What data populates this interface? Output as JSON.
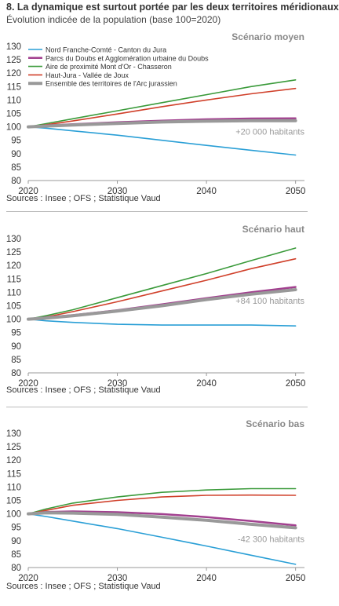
{
  "header": {
    "title": "8. La dynamique est surtout portée par les deux territoires méridionaux",
    "subtitle": "Évolution indicée de la population (base 100=2020)"
  },
  "source": "Sources : Insee ; OFS ; Statistique Vaud",
  "colors": {
    "nord": "#2a9fd6",
    "parcs": "#a2408f",
    "aire": "#3a9a3a",
    "haut": "#d0402a",
    "ensemble": "#999999"
  },
  "chart_data": [
    {
      "type": "line",
      "scenario": "Scénario moyen",
      "annotation": "+20 000 habitants",
      "ylim": [
        80,
        130
      ],
      "yticks": [
        80,
        85,
        90,
        95,
        100,
        105,
        110,
        115,
        120,
        125,
        130
      ],
      "xlim": [
        2020,
        2051
      ],
      "xticks": [
        2020,
        2030,
        2040,
        2050
      ],
      "x": [
        2020,
        2022,
        2025,
        2030,
        2035,
        2040,
        2045,
        2050
      ],
      "legend": true,
      "series": [
        {
          "key": "nord",
          "name": "Nord Franche-Comté - Canton du Jura",
          "values": [
            100,
            99.5,
            98.5,
            96.9,
            95.0,
            93.1,
            91.3,
            89.5
          ]
        },
        {
          "key": "parcs",
          "name": "Parcs du Doubs et Agglomération urbaine du Doubs",
          "values": [
            100,
            100.5,
            101.0,
            101.7,
            102.3,
            102.8,
            103.1,
            103.2
          ]
        },
        {
          "key": "aire",
          "name": "Aire de proximité Mont d'Or - Chasseron",
          "values": [
            100,
            101.2,
            103.0,
            106.0,
            109.0,
            112.0,
            115.0,
            117.5
          ]
        },
        {
          "key": "haut",
          "name": "Haut-Jura - Vallée de Joux",
          "values": [
            100,
            100.8,
            102.2,
            104.8,
            107.5,
            110.0,
            112.3,
            114.3
          ]
        },
        {
          "key": "ensemble",
          "name": "Ensemble des territoires de l'Arc jurassien",
          "values": [
            100,
            100.3,
            100.7,
            101.3,
            101.8,
            102.1,
            102.3,
            102.3
          ]
        }
      ]
    },
    {
      "type": "line",
      "scenario": "Scénario haut",
      "annotation": "+84 100 habitants",
      "ylim": [
        80,
        130
      ],
      "yticks": [
        80,
        85,
        90,
        95,
        100,
        105,
        110,
        115,
        120,
        125,
        130
      ],
      "xlim": [
        2020,
        2051
      ],
      "xticks": [
        2020,
        2030,
        2040,
        2050
      ],
      "x": [
        2020,
        2022,
        2025,
        2030,
        2035,
        2040,
        2045,
        2050
      ],
      "legend": false,
      "series": [
        {
          "key": "nord",
          "name": "Nord Franche-Comté - Canton du Jura",
          "values": [
            100,
            99.4,
            98.8,
            98.1,
            97.8,
            97.8,
            97.8,
            97.5
          ]
        },
        {
          "key": "parcs",
          "name": "Parcs du Doubs et Agglomération urbaine du Doubs",
          "values": [
            100,
            100.7,
            101.5,
            103.3,
            105.5,
            107.8,
            110.0,
            112.0
          ]
        },
        {
          "key": "aire",
          "name": "Aire de proximité Mont d'Or - Chasseron",
          "values": [
            100,
            101.3,
            103.5,
            108.0,
            112.5,
            117.0,
            121.8,
            126.5
          ]
        },
        {
          "key": "haut",
          "name": "Haut-Jura - Vallée de Joux",
          "values": [
            100,
            100.8,
            102.8,
            106.5,
            110.5,
            114.5,
            118.8,
            122.5
          ]
        },
        {
          "key": "ensemble",
          "name": "Ensemble des territoires de l'Arc jurassien",
          "values": [
            100,
            100.4,
            101.3,
            103.0,
            105.0,
            107.3,
            109.3,
            111.0
          ]
        }
      ]
    },
    {
      "type": "line",
      "scenario": "Scénario bas",
      "annotation": "-42 300 habitants",
      "ylim": [
        80,
        130
      ],
      "yticks": [
        80,
        85,
        90,
        95,
        100,
        105,
        110,
        115,
        120,
        125,
        130
      ],
      "xlim": [
        2020,
        2051
      ],
      "xticks": [
        2020,
        2030,
        2040,
        2050
      ],
      "x": [
        2020,
        2022,
        2025,
        2030,
        2035,
        2040,
        2045,
        2050
      ],
      "legend": false,
      "series": [
        {
          "key": "nord",
          "name": "Nord Franche-Comté - Canton du Jura",
          "values": [
            100,
            99.0,
            97.3,
            94.5,
            91.3,
            88.0,
            84.6,
            81.2
          ]
        },
        {
          "key": "parcs",
          "name": "Parcs du Doubs et Agglomération urbaine du Doubs",
          "values": [
            100,
            100.7,
            100.9,
            100.6,
            99.9,
            98.8,
            97.3,
            95.7
          ]
        },
        {
          "key": "aire",
          "name": "Aire de proximité Mont d'Or - Chasseron",
          "values": [
            100,
            101.8,
            104.0,
            106.3,
            108.0,
            108.9,
            109.4,
            109.4
          ]
        },
        {
          "key": "haut",
          "name": "Haut-Jura - Vallée de Joux",
          "values": [
            100,
            101.3,
            103.2,
            105.0,
            106.3,
            106.9,
            107.0,
            106.9
          ]
        },
        {
          "key": "ensemble",
          "name": "Ensemble des territoires de l'Arc jurassien",
          "values": [
            100,
            100.4,
            100.3,
            99.8,
            98.8,
            97.6,
            96.1,
            94.8
          ]
        }
      ]
    }
  ]
}
